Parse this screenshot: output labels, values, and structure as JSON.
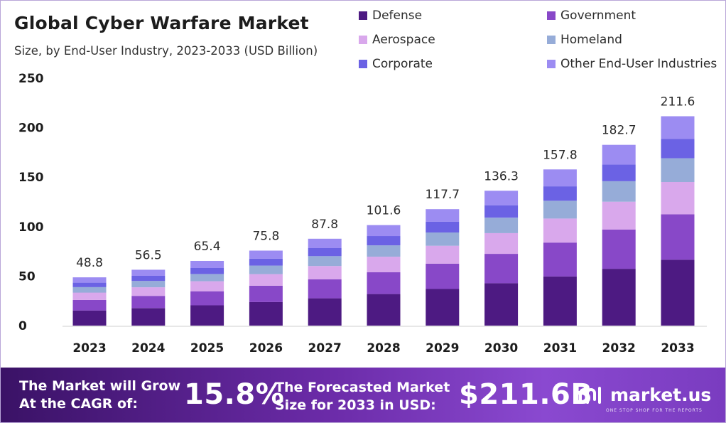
{
  "header": {
    "title": "Global Cyber Warfare Market",
    "subtitle": "Size, by End-User Industry, 2023-2033 (USD Billion)"
  },
  "footer": {
    "cagr_label_line1": "The Market will Grow",
    "cagr_label_line2": "At the CAGR of:",
    "cagr_value": "15.8%",
    "size_label_line1": "The Forecasted Market",
    "size_label_line2": "Size for 2033 in USD:",
    "size_value": "$211.6B",
    "brand_name": "market.us",
    "brand_tagline": "ONE STOP SHOP FOR THE REPORTS"
  },
  "chart_data": {
    "type": "bar",
    "stacked": true,
    "title": "Global Cyber Warfare Market",
    "subtitle": "Size, by End-User Industry, 2023-2033 (USD Billion)",
    "categories": [
      "2023",
      "2024",
      "2025",
      "2026",
      "2027",
      "2028",
      "2029",
      "2030",
      "2031",
      "2032",
      "2033"
    ],
    "totals": [
      48.8,
      56.5,
      65.4,
      75.8,
      87.8,
      101.6,
      117.7,
      136.3,
      157.8,
      182.7,
      211.6
    ],
    "total_labels": [
      "48.8",
      "56.5",
      "65.4",
      "75.8",
      "87.8",
      "101.6",
      "117.7",
      "136.3",
      "157.8",
      "182.7",
      "211.6"
    ],
    "series": [
      {
        "name": "Defense",
        "color": "#4d1a82",
        "values": [
          15.3,
          17.7,
          20.5,
          23.8,
          27.6,
          31.9,
          37.0,
          42.8,
          49.6,
          57.4,
          66.5
        ]
      },
      {
        "name": "Government",
        "color": "#8848c8",
        "values": [
          10.6,
          12.3,
          14.2,
          16.5,
          19.1,
          22.1,
          25.6,
          29.7,
          34.3,
          39.7,
          46.0
        ]
      },
      {
        "name": "Aerospace",
        "color": "#d9a8ec",
        "values": [
          7.5,
          8.7,
          10.1,
          11.7,
          13.5,
          15.6,
          18.1,
          21.0,
          24.3,
          28.1,
          32.6
        ]
      },
      {
        "name": "Homeland",
        "color": "#96acd8",
        "values": [
          5.5,
          6.4,
          7.4,
          8.6,
          10.0,
          11.5,
          13.4,
          15.5,
          17.9,
          20.7,
          24.0
        ]
      },
      {
        "name": "Corporate",
        "color": "#6b62e4",
        "values": [
          4.5,
          5.2,
          6.0,
          7.0,
          8.1,
          9.4,
          10.9,
          12.6,
          14.6,
          16.9,
          19.6
        ]
      },
      {
        "name": "Other End-User Industries",
        "color": "#9c8cf2",
        "values": [
          5.4,
          6.2,
          7.2,
          8.2,
          9.5,
          11.1,
          12.7,
          14.7,
          17.1,
          19.9,
          22.9
        ]
      }
    ],
    "yticks": [
      0,
      50,
      100,
      150,
      200,
      250
    ],
    "ylim": [
      0,
      250
    ],
    "xlabel": "",
    "ylabel": "",
    "grid": false,
    "legend_position": "top-right"
  }
}
